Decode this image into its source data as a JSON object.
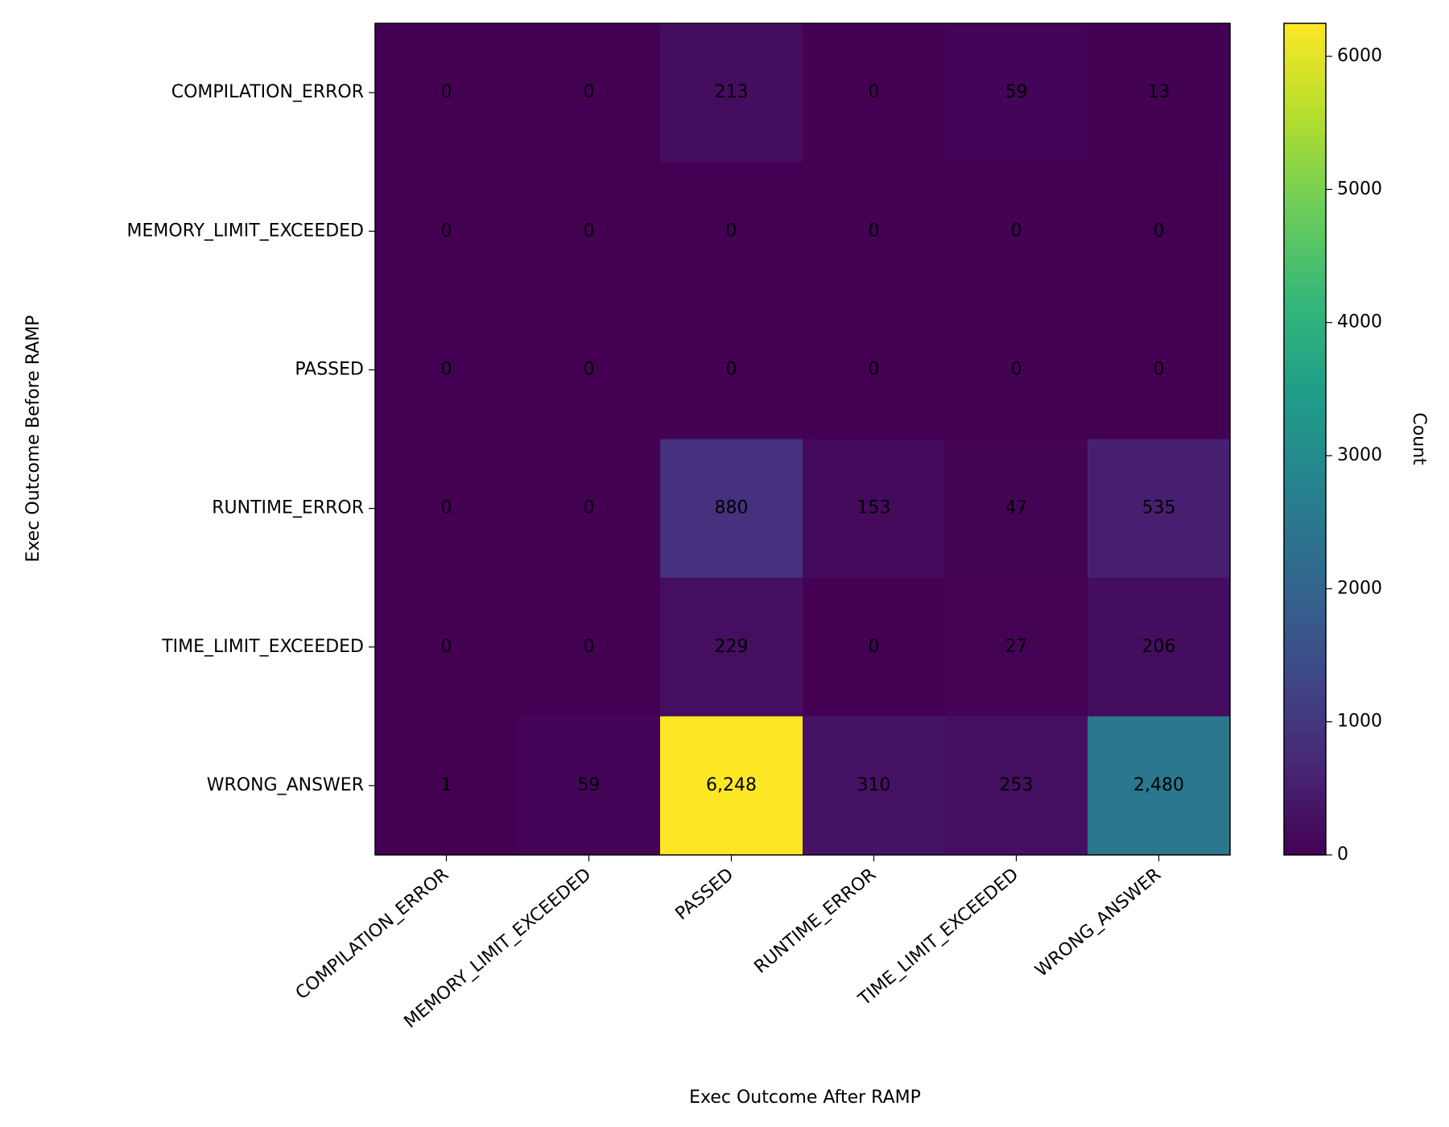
{
  "chart_data": {
    "type": "heatmap",
    "xlabel": "Exec Outcome After RAMP",
    "ylabel": "Exec Outcome Before RAMP",
    "x_categories": [
      "COMPILATION_ERROR",
      "MEMORY_LIMIT_EXCEEDED",
      "PASSED",
      "RUNTIME_ERROR",
      "TIME_LIMIT_EXCEEDED",
      "WRONG_ANSWER"
    ],
    "y_categories": [
      "COMPILATION_ERROR",
      "MEMORY_LIMIT_EXCEEDED",
      "PASSED",
      "RUNTIME_ERROR",
      "TIME_LIMIT_EXCEEDED",
      "WRONG_ANSWER"
    ],
    "values": [
      [
        0,
        0,
        213,
        0,
        59,
        13
      ],
      [
        0,
        0,
        0,
        0,
        0,
        0
      ],
      [
        0,
        0,
        0,
        0,
        0,
        0
      ],
      [
        0,
        0,
        880,
        153,
        47,
        535
      ],
      [
        0,
        0,
        229,
        0,
        27,
        206
      ],
      [
        1,
        59,
        6248,
        310,
        253,
        2480
      ]
    ],
    "value_labels": [
      [
        "0",
        "0",
        "213",
        "0",
        "59",
        "13"
      ],
      [
        "0",
        "0",
        "0",
        "0",
        "0",
        "0"
      ],
      [
        "0",
        "0",
        "0",
        "0",
        "0",
        "0"
      ],
      [
        "0",
        "0",
        "880",
        "153",
        "47",
        "535"
      ],
      [
        "0",
        "0",
        "229",
        "0",
        "27",
        "206"
      ],
      [
        "1",
        "59",
        "6,248",
        "310",
        "253",
        "2,480"
      ]
    ],
    "colormap": "viridis",
    "colorbar_label": "Count",
    "clim": [
      0,
      6248
    ],
    "cticks": [
      0,
      1000,
      2000,
      3000,
      4000,
      5000,
      6000
    ]
  }
}
